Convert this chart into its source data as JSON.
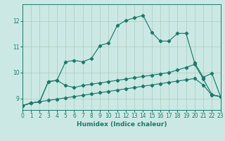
{
  "xlabel": "Humidex (Indice chaleur)",
  "bg_color": "#cce8e4",
  "grid_color": "#aaccbb",
  "line_color": "#1a7a6a",
  "xlim": [
    0,
    23
  ],
  "ylim": [
    8.55,
    12.65
  ],
  "yticks": [
    9,
    10,
    11,
    12
  ],
  "xticks": [
    0,
    1,
    2,
    3,
    4,
    5,
    6,
    7,
    8,
    9,
    10,
    11,
    12,
    13,
    14,
    15,
    16,
    17,
    18,
    19,
    20,
    21,
    22,
    23
  ],
  "line1_x": [
    0,
    1,
    2,
    3,
    4,
    5,
    6,
    7,
    8,
    9,
    10,
    11,
    12,
    13,
    14,
    15,
    16,
    17,
    18,
    19,
    20,
    21,
    22,
    23
  ],
  "line1_y": [
    8.72,
    8.82,
    8.87,
    8.92,
    8.97,
    9.02,
    9.07,
    9.12,
    9.17,
    9.22,
    9.27,
    9.32,
    9.37,
    9.42,
    9.47,
    9.52,
    9.57,
    9.62,
    9.67,
    9.72,
    9.77,
    9.52,
    9.12,
    9.07
  ],
  "line2_x": [
    0,
    1,
    2,
    3,
    4,
    5,
    6,
    7,
    8,
    9,
    10,
    11,
    12,
    13,
    14,
    15,
    16,
    17,
    18,
    19,
    20,
    21,
    22,
    23
  ],
  "line2_y": [
    8.72,
    8.82,
    8.87,
    9.65,
    9.7,
    9.5,
    9.42,
    9.5,
    9.55,
    9.6,
    9.65,
    9.7,
    9.75,
    9.8,
    9.85,
    9.9,
    9.95,
    10.0,
    10.1,
    10.2,
    10.32,
    9.75,
    9.15,
    9.07
  ],
  "line3_x": [
    0,
    1,
    2,
    3,
    4,
    5,
    6,
    7,
    8,
    9,
    10,
    11,
    12,
    13,
    14,
    15,
    16,
    17,
    18,
    19,
    20,
    21,
    22,
    23
  ],
  "line3_y": [
    8.72,
    8.82,
    8.87,
    9.65,
    9.7,
    10.42,
    10.47,
    10.42,
    10.55,
    11.05,
    11.15,
    11.82,
    12.02,
    12.12,
    12.22,
    11.57,
    11.22,
    11.22,
    11.52,
    11.52,
    10.37,
    9.82,
    9.97,
    9.07
  ],
  "marker": "D",
  "markersize": 2.2,
  "linewidth": 0.85
}
